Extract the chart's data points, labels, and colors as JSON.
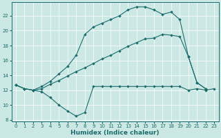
{
  "bg_color": "#cce8e5",
  "line_color": "#1a6b6b",
  "grid_color": "#ffffff",
  "xlabel": "Humidex (Indice chaleur)",
  "xlabel_fontsize": 6.5,
  "ylim": [
    7.8,
    23.8
  ],
  "xlim": [
    -0.5,
    23.5
  ],
  "yticks": [
    8,
    10,
    12,
    14,
    16,
    18,
    20,
    22
  ],
  "xticks": [
    0,
    1,
    2,
    3,
    4,
    5,
    6,
    7,
    8,
    9,
    10,
    11,
    12,
    13,
    14,
    15,
    16,
    17,
    18,
    19,
    20,
    21,
    22,
    23
  ],
  "curve_bottom_x": [
    0,
    1,
    2,
    3,
    4,
    5,
    6,
    7,
    8,
    9,
    10,
    11,
    12,
    13,
    14,
    15,
    16,
    17,
    18,
    19,
    20,
    21,
    22,
    23
  ],
  "curve_bottom_y": [
    12.7,
    12.2,
    12.0,
    11.8,
    11.0,
    10.0,
    9.2,
    8.5,
    9.0,
    12.5,
    12.5,
    12.5,
    12.5,
    12.5,
    12.5,
    12.5,
    12.5,
    12.5,
    12.5,
    12.5,
    12.0,
    12.2,
    12.0,
    12.2
  ],
  "curve_mid_x": [
    0,
    1,
    2,
    3,
    4,
    5,
    6,
    7,
    8,
    9,
    10,
    11,
    12,
    13,
    14,
    15,
    16,
    17,
    18,
    19,
    20,
    21,
    22,
    23
  ],
  "curve_mid_y": [
    12.7,
    12.2,
    12.0,
    12.2,
    12.8,
    13.3,
    13.9,
    14.5,
    15.0,
    15.6,
    16.2,
    16.7,
    17.3,
    17.9,
    18.4,
    18.9,
    19.0,
    19.5,
    19.4,
    19.2,
    16.5,
    13.0,
    12.2,
    null
  ],
  "curve_top_x": [
    0,
    1,
    2,
    3,
    4,
    5,
    6,
    7,
    8,
    9,
    10,
    11,
    12,
    13,
    14,
    15,
    16,
    17,
    18,
    19,
    20,
    21,
    22,
    23
  ],
  "curve_top_y": [
    12.7,
    12.2,
    12.0,
    12.5,
    13.2,
    14.2,
    15.2,
    16.7,
    19.5,
    20.5,
    21.0,
    21.5,
    22.0,
    22.8,
    23.2,
    23.2,
    22.8,
    22.2,
    22.5,
    21.5,
    16.5,
    13.0,
    12.2,
    null
  ]
}
